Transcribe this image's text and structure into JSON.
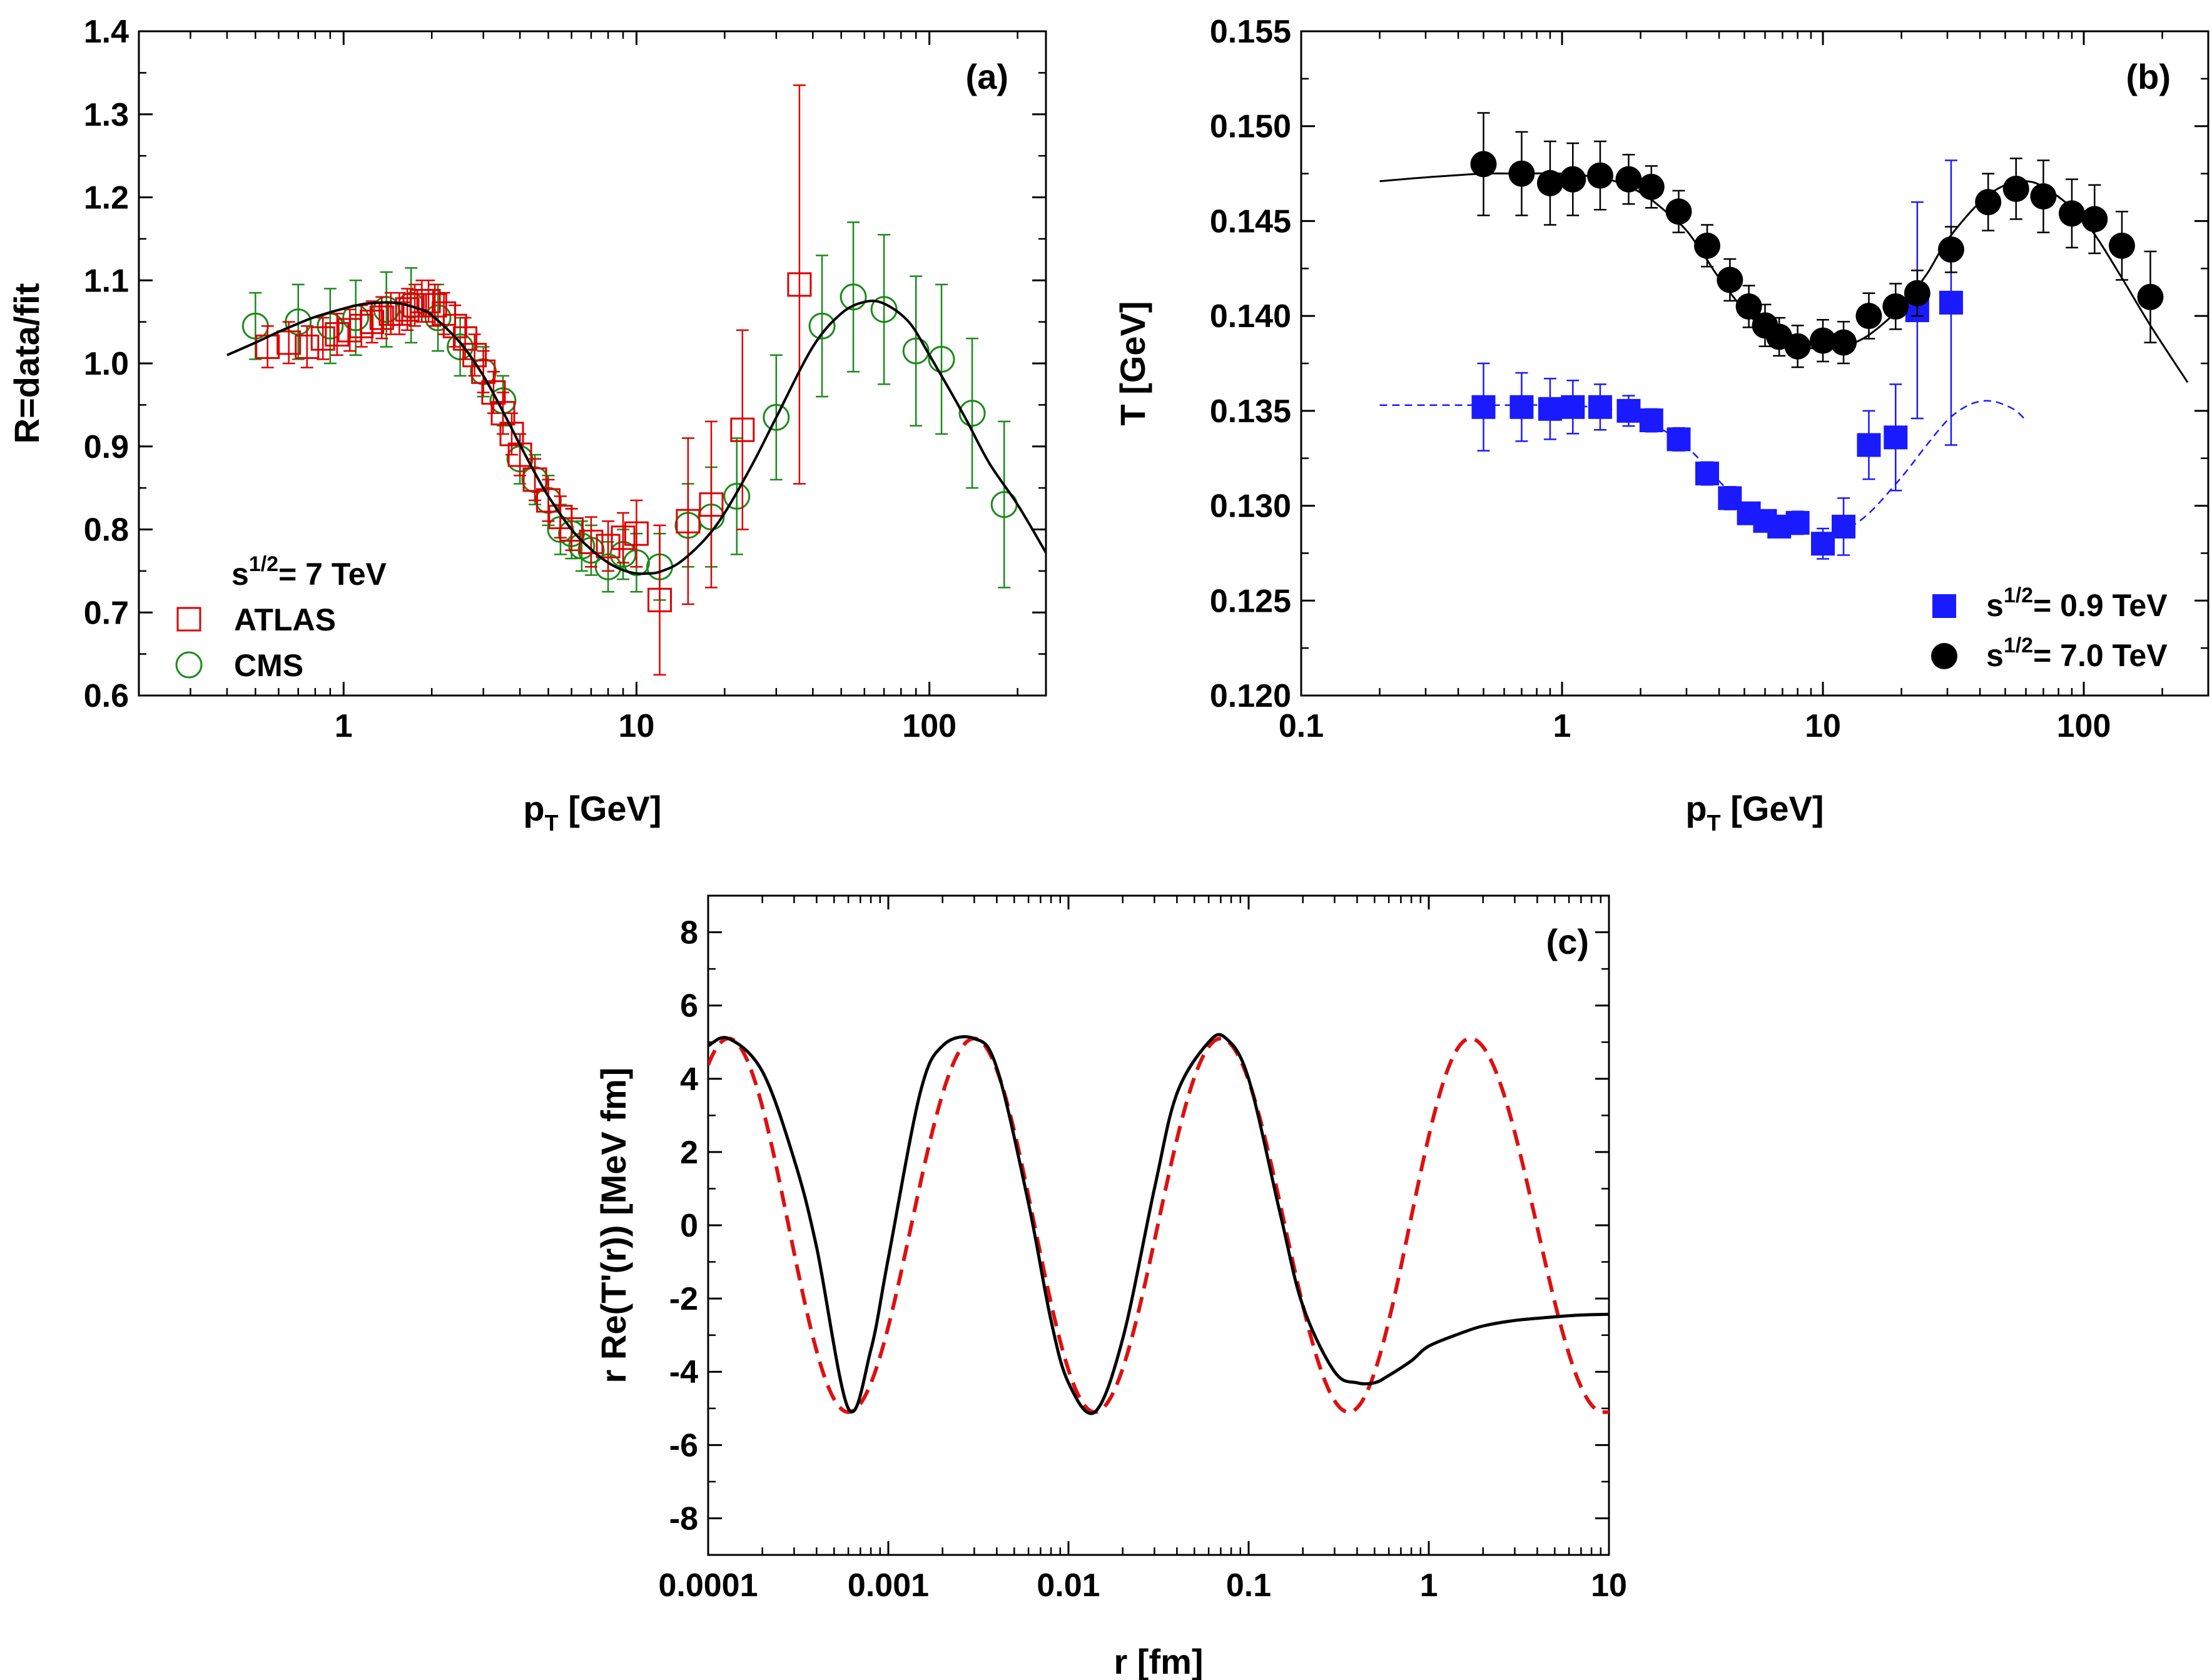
{
  "chart_data": [
    {
      "id": "a",
      "type": "scatter",
      "panel_label": "(a)",
      "xlabel": "p",
      "xlabel_sub": "T",
      "xlabel_unit": " [GeV]",
      "ylabel": "R=data/fit",
      "xscale": "log",
      "xlim": [
        0.2,
        250
      ],
      "ylim": [
        0.6,
        1.4
      ],
      "x_ticks": [
        1,
        10,
        100
      ],
      "x_tick_labels": [
        "1",
        "10",
        "100"
      ],
      "y_ticks": [
        0.6,
        0.7,
        0.8,
        0.9,
        1.0,
        1.1,
        1.2,
        1.3,
        1.4
      ],
      "y_tick_labels": [
        "0.6",
        "0.7",
        "0.8",
        "0.9",
        "1.0",
        "1.1",
        "1.2",
        "1.3",
        "1.4"
      ],
      "legend_title": "s",
      "legend_title_sup": "1/2",
      "legend_title_rest": "= 7 TeV",
      "legend_position": "bottom-left",
      "series": [
        {
          "name": "ATLAS",
          "marker": "open-square",
          "color": "#dd0000",
          "x": [
            0.55,
            0.65,
            0.75,
            0.85,
            0.95,
            1.05,
            1.15,
            1.25,
            1.35,
            1.45,
            1.55,
            1.65,
            1.75,
            1.85,
            1.95,
            2.05,
            2.2,
            2.4,
            2.6,
            2.8,
            3.0,
            3.25,
            3.5,
            3.75,
            4.0,
            4.5,
            5.0,
            5.5,
            6.0,
            7.0,
            8.0,
            9.0,
            10.0,
            12.0,
            15.0,
            18.0,
            23.0,
            36.0
          ],
          "y": [
            1.02,
            1.025,
            1.02,
            1.03,
            1.035,
            1.04,
            1.045,
            1.05,
            1.055,
            1.06,
            1.06,
            1.065,
            1.07,
            1.075,
            1.075,
            1.07,
            1.06,
            1.045,
            1.03,
            1.01,
            0.99,
            0.965,
            0.94,
            0.915,
            0.89,
            0.86,
            0.835,
            0.815,
            0.8,
            0.785,
            0.78,
            0.79,
            0.795,
            0.715,
            0.81,
            0.83,
            0.92,
            1.095
          ],
          "yerr": [
            0.025,
            0.025,
            0.025,
            0.025,
            0.025,
            0.025,
            0.025,
            0.025,
            0.025,
            0.025,
            0.025,
            0.025,
            0.025,
            0.025,
            0.025,
            0.025,
            0.025,
            0.025,
            0.025,
            0.025,
            0.025,
            0.025,
            0.025,
            0.025,
            0.025,
            0.025,
            0.025,
            0.025,
            0.025,
            0.03,
            0.03,
            0.03,
            0.04,
            0.09,
            0.1,
            0.1,
            0.12,
            0.24
          ]
        },
        {
          "name": "CMS",
          "marker": "open-circle",
          "color": "#1a8a1a",
          "x": [
            0.5,
            0.7,
            0.9,
            1.1,
            1.4,
            1.7,
            2.1,
            2.5,
            3.0,
            3.5,
            4.0,
            4.5,
            5.0,
            5.5,
            6.0,
            6.5,
            7.0,
            8.0,
            9.0,
            10.0,
            12.0,
            15.0,
            18.0,
            22.0,
            30.0,
            43.0,
            55.0,
            70.0,
            90.0,
            110.0,
            140.0,
            180.0
          ],
          "y": [
            1.045,
            1.05,
            1.045,
            1.055,
            1.065,
            1.07,
            1.055,
            1.02,
            0.99,
            0.955,
            0.885,
            0.86,
            0.835,
            0.8,
            0.795,
            0.78,
            0.775,
            0.755,
            0.77,
            0.76,
            0.755,
            0.805,
            0.815,
            0.84,
            0.935,
            1.045,
            1.08,
            1.065,
            1.015,
            1.005,
            0.94,
            0.83
          ],
          "yerr": [
            0.04,
            0.045,
            0.045,
            0.045,
            0.045,
            0.045,
            0.04,
            0.035,
            0.03,
            0.03,
            0.03,
            0.03,
            0.03,
            0.03,
            0.03,
            0.03,
            0.03,
            0.03,
            0.03,
            0.035,
            0.04,
            0.05,
            0.06,
            0.07,
            0.075,
            0.085,
            0.09,
            0.09,
            0.09,
            0.09,
            0.09,
            0.1
          ]
        }
      ],
      "fit_curve": {
        "color": "#000000",
        "x": [
          0.4,
          0.5,
          0.6,
          0.7,
          0.8,
          1.0,
          1.2,
          1.5,
          1.8,
          2.0,
          2.5,
          3.0,
          3.5,
          4.0,
          4.5,
          5.0,
          6.0,
          7.0,
          8.0,
          9.0,
          10.0,
          11.0,
          12.0,
          14.0,
          17.0,
          20.0,
          25.0,
          30.0,
          40.0,
          50.0,
          60.0,
          70.0,
          85.0,
          100.0,
          130.0,
          160.0,
          200.0,
          250.0
        ],
        "y": [
          1.01,
          1.025,
          1.038,
          1.048,
          1.056,
          1.066,
          1.072,
          1.073,
          1.066,
          1.058,
          1.025,
          0.985,
          0.942,
          0.902,
          0.868,
          0.84,
          0.8,
          0.776,
          0.76,
          0.751,
          0.747,
          0.747,
          0.749,
          0.76,
          0.787,
          0.82,
          0.88,
          0.935,
          1.02,
          1.06,
          1.074,
          1.072,
          1.05,
          1.01,
          0.94,
          0.88,
          0.83,
          0.772
        ]
      }
    },
    {
      "id": "b",
      "type": "scatter",
      "panel_label": "(b)",
      "xlabel": "p",
      "xlabel_sub": "T",
      "xlabel_unit": " [GeV]",
      "ylabel": "T [GeV]",
      "xscale": "log",
      "xlim": [
        0.1,
        300
      ],
      "ylim": [
        0.12,
        0.155
      ],
      "x_ticks": [
        0.1,
        1,
        10,
        100
      ],
      "x_tick_labels": [
        "0.1",
        "1",
        "10",
        "100"
      ],
      "y_ticks": [
        0.12,
        0.125,
        0.13,
        0.135,
        0.14,
        0.145,
        0.15,
        0.155
      ],
      "y_tick_labels": [
        "0.120",
        "0.125",
        "0.130",
        "0.135",
        "0.140",
        "0.145",
        "0.150",
        "0.155"
      ],
      "legend_position": "bottom-right",
      "series": [
        {
          "name_prefix": "s",
          "name_sup": "1/2",
          "name_rest": "= 0.9 TeV",
          "marker": "filled-square",
          "color": "#1a1aff",
          "x": [
            0.5,
            0.7,
            0.9,
            1.1,
            1.4,
            1.8,
            2.2,
            2.8,
            3.6,
            4.4,
            5.2,
            6.0,
            6.8,
            8.0,
            10.0,
            12.0,
            15.0,
            19.0,
            23.0,
            31.0
          ],
          "y": [
            0.1352,
            0.1352,
            0.1351,
            0.1352,
            0.1352,
            0.135,
            0.1345,
            0.1335,
            0.1317,
            0.1304,
            0.1296,
            0.1292,
            0.1289,
            0.1291,
            0.128,
            0.1289,
            0.1332,
            0.1336,
            0.1403,
            0.1407
          ],
          "yerr": [
            0.0023,
            0.0018,
            0.0016,
            0.0014,
            0.0012,
            0.0008,
            0.0006,
            0.0006,
            0.0006,
            0.0006,
            0.0005,
            0.0005,
            0.0005,
            0.0006,
            0.0008,
            0.0015,
            0.0018,
            0.0028,
            0.0057,
            0.0075
          ]
        },
        {
          "name_prefix": "s",
          "name_sup": "1/2",
          "name_rest": "= 7.0 TeV",
          "marker": "filled-circle",
          "color": "#000000",
          "x": [
            0.5,
            0.7,
            0.9,
            1.1,
            1.4,
            1.8,
            2.2,
            2.8,
            3.6,
            4.4,
            5.2,
            6.0,
            6.8,
            8.0,
            10.0,
            12.0,
            15.0,
            19.0,
            23.0,
            31.0,
            43.0,
            55.0,
            70.0,
            90.0,
            110.0,
            140.0,
            180.0
          ],
          "y": [
            0.148,
            0.1475,
            0.147,
            0.1472,
            0.1474,
            0.1472,
            0.1468,
            0.1455,
            0.1437,
            0.1419,
            0.1405,
            0.1395,
            0.1389,
            0.1384,
            0.1387,
            0.1386,
            0.14,
            0.1405,
            0.1412,
            0.1435,
            0.146,
            0.1467,
            0.1463,
            0.1454,
            0.1451,
            0.1437,
            0.141
          ],
          "yerr": [
            0.0027,
            0.0022,
            0.0022,
            0.0019,
            0.0018,
            0.0013,
            0.0011,
            0.0011,
            0.0011,
            0.0011,
            0.0011,
            0.0011,
            0.001,
            0.0011,
            0.0011,
            0.0011,
            0.0012,
            0.0012,
            0.0012,
            0.0012,
            0.0015,
            0.0016,
            0.0019,
            0.0018,
            0.0018,
            0.0018,
            0.0024
          ]
        }
      ],
      "fit_curves": [
        {
          "color": "#000000",
          "style": "solid",
          "x": [
            0.2,
            0.3,
            0.5,
            0.7,
            1.0,
            1.5,
            2.0,
            2.5,
            3.0,
            3.5,
            4.0,
            5.0,
            6.0,
            7.0,
            8.0,
            9.0,
            10.0,
            12.0,
            15.0,
            20.0,
            25.0,
            30.0,
            40.0,
            50.0,
            60.0,
            70.0,
            90.0,
            110.0,
            140.0,
            180.0,
            250.0
          ],
          "y": [
            0.1471,
            0.1473,
            0.1475,
            0.1475,
            0.1475,
            0.1472,
            0.1465,
            0.1455,
            0.1445,
            0.1432,
            0.142,
            0.1403,
            0.1393,
            0.1388,
            0.1385,
            0.1383,
            0.1383,
            0.1384,
            0.139,
            0.1405,
            0.1422,
            0.144,
            0.146,
            0.1469,
            0.1471,
            0.1468,
            0.1457,
            0.1443,
            0.142,
            0.1395,
            0.1365
          ]
        },
        {
          "color": "#1a1aff",
          "style": "dashed",
          "x": [
            0.2,
            0.3,
            0.5,
            0.7,
            1.0,
            1.5,
            2.0,
            2.5,
            3.0,
            3.5,
            4.0,
            5.0,
            6.0,
            7.0,
            8.0,
            9.0,
            10.0,
            12.0,
            15.0,
            20.0,
            25.0,
            30.0,
            35.0,
            40.0,
            45.0,
            50.0,
            55.0,
            60.0
          ],
          "y": [
            0.1353,
            0.1353,
            0.1353,
            0.1353,
            0.1353,
            0.1351,
            0.1346,
            0.1339,
            0.1331,
            0.1322,
            0.1313,
            0.13,
            0.1292,
            0.1288,
            0.1286,
            0.1285,
            0.1285,
            0.1287,
            0.1296,
            0.1315,
            0.1332,
            0.1345,
            0.1352,
            0.1355,
            0.1355,
            0.1353,
            0.135,
            0.1345
          ]
        }
      ]
    },
    {
      "id": "c",
      "type": "line",
      "panel_label": "(c)",
      "xlabel": "r [fm]",
      "ylabel": "r Re(T'(r)) [MeV fm]",
      "xscale": "log",
      "xlim": [
        0.0001,
        10
      ],
      "ylim": [
        -9,
        9
      ],
      "x_ticks": [
        0.0001,
        0.001,
        0.01,
        0.1,
        1,
        10
      ],
      "x_tick_labels": [
        "0.0001",
        "0.001",
        "0.01",
        "0.1",
        "1",
        "10"
      ],
      "y_ticks": [
        -8,
        -6,
        -4,
        -2,
        0,
        2,
        4,
        6,
        8
      ],
      "y_tick_labels": [
        "-8",
        "-6",
        "-4",
        "-2",
        "0",
        "2",
        "4",
        "6",
        "8"
      ],
      "series": [
        {
          "color": "#dd1111",
          "style": "dashed",
          "amplitude": 5.1,
          "peak_x": [
            0.00013,
            0.003,
            0.07,
            1.7
          ],
          "trough_x": [
            0.0006,
            0.014,
            0.36,
            9.3
          ]
        },
        {
          "color": "#000000",
          "style": "solid",
          "x": [
            0.0001,
            0.00013,
            0.0002,
            0.0003,
            0.0004,
            0.0006,
            0.0008,
            0.001,
            0.0015,
            0.002,
            0.003,
            0.004,
            0.006,
            0.008,
            0.01,
            0.014,
            0.02,
            0.03,
            0.04,
            0.06,
            0.075,
            0.1,
            0.15,
            0.2,
            0.3,
            0.4,
            0.5,
            0.6,
            0.8,
            1.0,
            1.5,
            2.0,
            3.0,
            5.0,
            7.0,
            10.0
          ],
          "y": [
            4.9,
            5.1,
            4.2,
            1.8,
            -0.6,
            -5.0,
            -3.4,
            -0.9,
            3.6,
            4.9,
            5.1,
            4.3,
            0.6,
            -2.6,
            -4.3,
            -5.1,
            -3.1,
            1.0,
            3.6,
            5.0,
            5.1,
            4.0,
            0.3,
            -2.2,
            -4.0,
            -4.3,
            -4.3,
            -4.1,
            -3.7,
            -3.3,
            -2.95,
            -2.75,
            -2.6,
            -2.5,
            -2.45,
            -2.43
          ]
        }
      ]
    }
  ]
}
